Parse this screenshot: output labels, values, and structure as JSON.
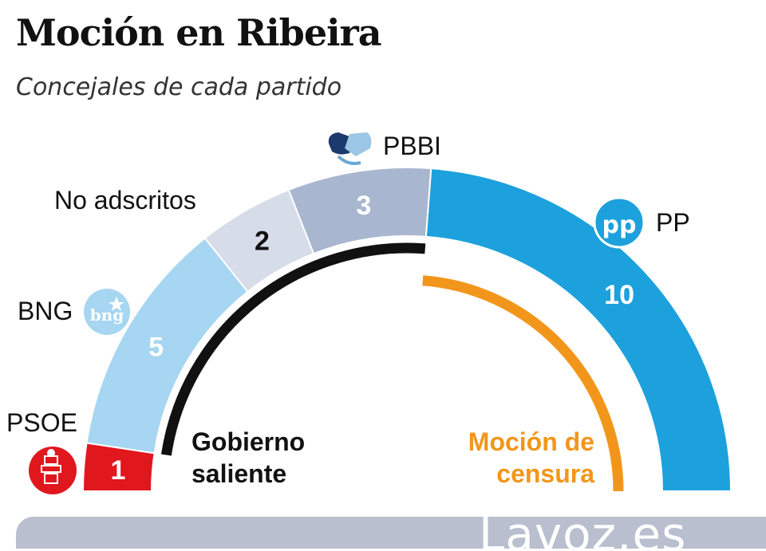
{
  "title": "Moción en Ribeira",
  "subtitle": "Concejales de cada partido",
  "chart_data": {
    "type": "pie",
    "total": 21,
    "slices": [
      {
        "party": "PSOE",
        "seats": 1,
        "color": "#e1171e",
        "value_color": "#ffffff"
      },
      {
        "party": "BNG",
        "seats": 5,
        "color": "#a6d6f1",
        "value_color": "#ffffff"
      },
      {
        "party": "No adscritos",
        "seats": 2,
        "color": "#d6dce8",
        "value_color": "#111111"
      },
      {
        "party": "PBBI",
        "seats": 3,
        "color": "#a9b6cf",
        "value_color": "#ffffff"
      },
      {
        "party": "PP",
        "seats": 10,
        "color": "#1da1dc",
        "value_color": "#ffffff"
      }
    ],
    "groups": [
      {
        "label_line1": "Gobierno",
        "label_line2": "saliente",
        "parties": [
          "BNG",
          "No adscritos",
          "PBBI"
        ],
        "color": "#111111"
      },
      {
        "label_line1": "Moción de",
        "label_line2": "censura",
        "parties": [
          "PP"
        ],
        "color": "#f2961b"
      }
    ]
  },
  "icons": {
    "psoe": "psoe-logo-icon",
    "bng": "bng-logo-icon",
    "bng_text": "bng",
    "pbbi": "handshake-icon",
    "pp": "pp-logo-icon",
    "pp_text": "pp"
  },
  "footer": {
    "brand": "Lavoz.es"
  }
}
